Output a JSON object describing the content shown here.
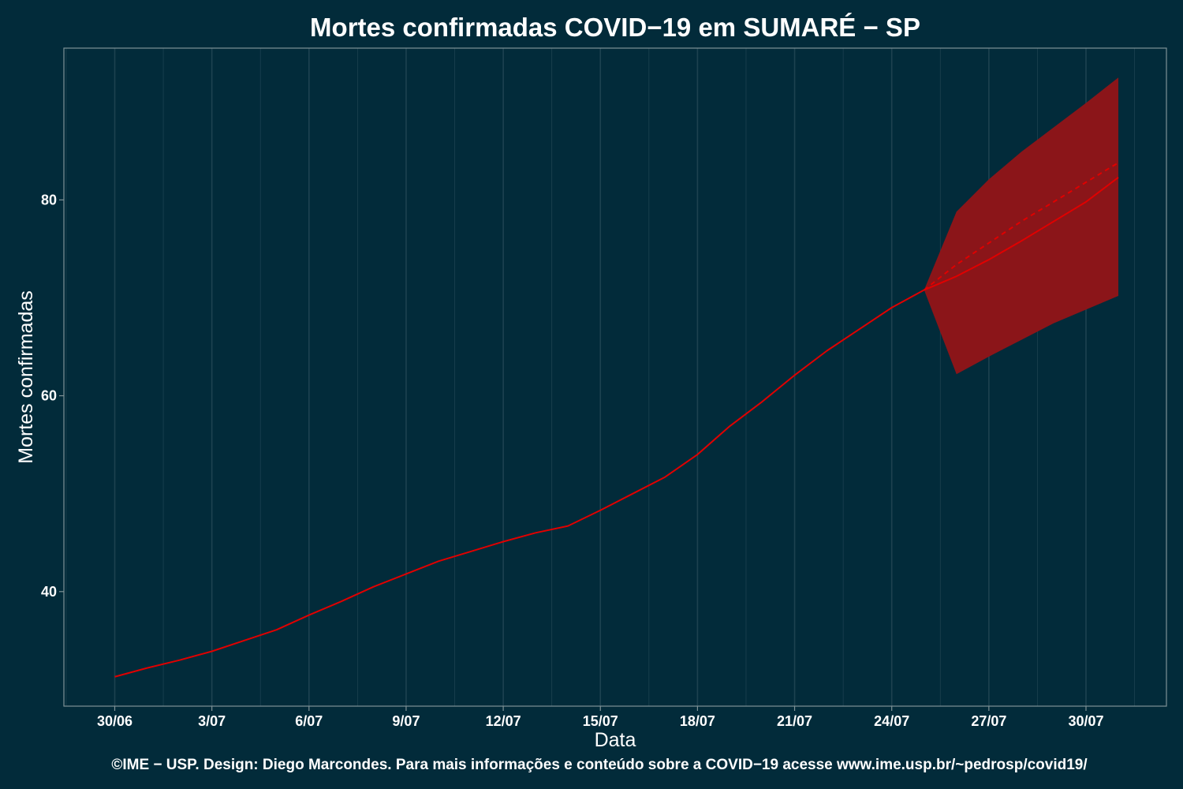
{
  "chart_data": {
    "type": "line",
    "title": "Mortes confirmadas COVID−19 em SUMARÉ − SP",
    "xlabel": "Data",
    "ylabel": "Mortes confirmadas",
    "footer": "©IME − USP. Design: Diego Marcondes. Para mais informações e conteúdo sobre a COVID−19 acesse www.ime.usp.br/~pedrosp/covid19/",
    "x_ticks": [
      "30/06",
      "3/07",
      "6/07",
      "9/07",
      "12/07",
      "15/07",
      "18/07",
      "21/07",
      "24/07",
      "27/07",
      "30/07"
    ],
    "y_ticks": [
      40,
      60,
      80
    ],
    "ylim": [
      28.3,
      95.5
    ],
    "grid": "vertical only",
    "colors": {
      "background": "#022b3a",
      "line": "#e00000",
      "band": "#8b1519",
      "grid": "#1d4250",
      "panel_border": "#7f9296"
    },
    "series": [
      {
        "values": [
          {
            "x": "30/06",
            "y": 31.3
          },
          {
            "x": "1/07",
            "y": 32.2
          },
          {
            "x": "2/07",
            "y": 33.0
          },
          {
            "x": "3/07",
            "y": 33.9
          },
          {
            "x": "4/07",
            "y": 35.0
          },
          {
            "x": "5/07",
            "y": 36.1
          },
          {
            "x": "6/07",
            "y": 37.6
          },
          {
            "x": "7/07",
            "y": 39.0
          },
          {
            "x": "8/07",
            "y": 40.5
          },
          {
            "x": "9/07",
            "y": 41.8
          },
          {
            "x": "10/07",
            "y": 43.1
          },
          {
            "x": "11/07",
            "y": 44.1
          },
          {
            "x": "12/07",
            "y": 45.1
          },
          {
            "x": "13/07",
            "y": 46.0
          },
          {
            "x": "14/07",
            "y": 46.7
          },
          {
            "x": "15/07",
            "y": 48.3
          },
          {
            "x": "16/07",
            "y": 50.0
          },
          {
            "x": "17/07",
            "y": 51.7
          },
          {
            "x": "18/07",
            "y": 54.0
          },
          {
            "x": "19/07",
            "y": 56.9
          },
          {
            "x": "20/07",
            "y": 59.4
          },
          {
            "x": "21/07",
            "y": 62.1
          },
          {
            "x": "22/07",
            "y": 64.6
          },
          {
            "x": "23/07",
            "y": 66.8
          },
          {
            "x": "24/07",
            "y": 69.0
          },
          {
            "x": "25/07",
            "y": 70.8
          },
          {
            "x": "26/07",
            "y": 72.2
          },
          {
            "x": "27/07",
            "y": 73.9
          },
          {
            "x": "28/07",
            "y": 75.8
          },
          {
            "x": "29/07",
            "y": 77.8
          },
          {
            "x": "30/07",
            "y": 79.8
          },
          {
            "x": "31/07",
            "y": 82.3
          }
        ]
      },
      {
        "style": "dashed",
        "values": [
          {
            "x": "25/07",
            "y": 70.8
          },
          {
            "x": "26/07",
            "y": 73.4
          },
          {
            "x": "27/07",
            "y": 75.6
          },
          {
            "x": "28/07",
            "y": 77.8
          },
          {
            "x": "29/07",
            "y": 79.8
          },
          {
            "x": "30/07",
            "y": 81.8
          },
          {
            "x": "31/07",
            "y": 83.8
          }
        ]
      }
    ],
    "band": [
      {
        "x": "25/07",
        "low": 70.8,
        "high": 70.8
      },
      {
        "x": "26/07",
        "low": 62.2,
        "high": 78.8
      },
      {
        "x": "27/07",
        "low": 64.0,
        "high": 82.1
      },
      {
        "x": "28/07",
        "low": 65.7,
        "high": 84.9
      },
      {
        "x": "29/07",
        "low": 67.4,
        "high": 87.4
      },
      {
        "x": "30/07",
        "low": 68.8,
        "high": 89.9
      },
      {
        "x": "31/07",
        "low": 70.2,
        "high": 92.5
      }
    ]
  }
}
